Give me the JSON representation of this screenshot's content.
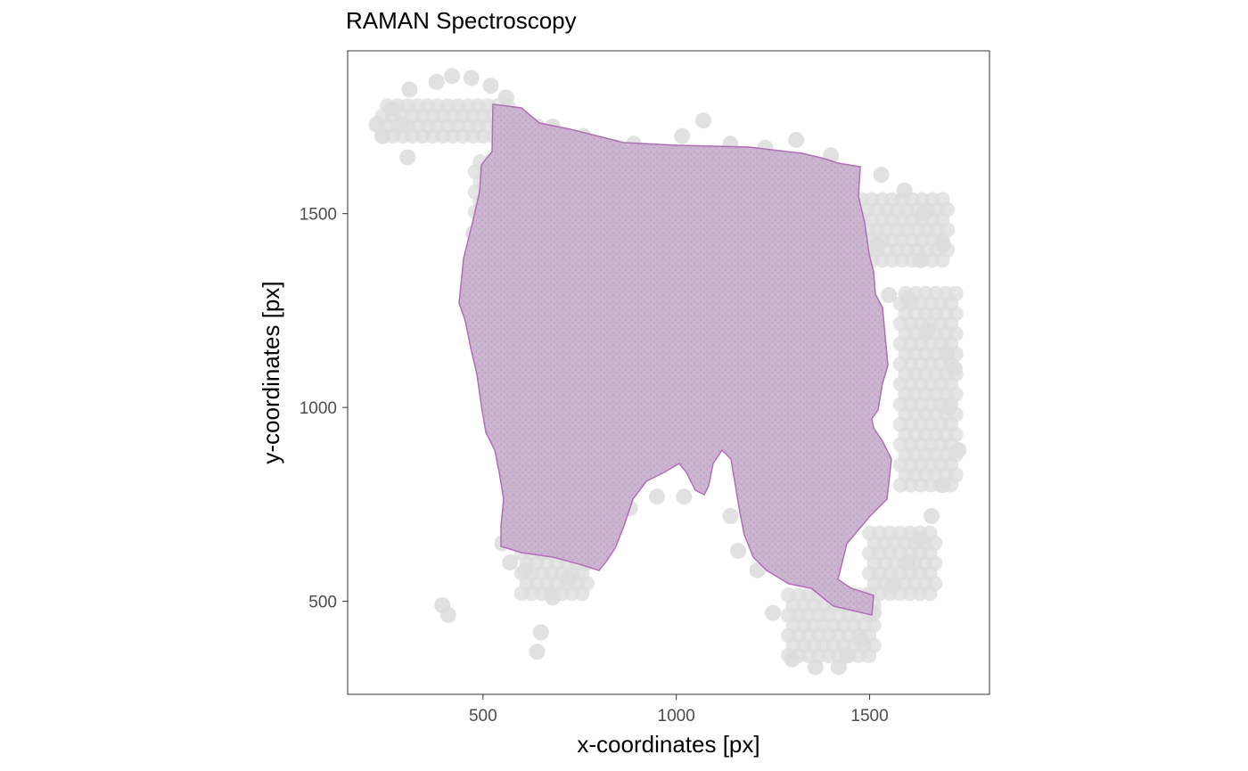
{
  "chart_data": {
    "type": "scatter",
    "title": "RAMAN Spectroscopy",
    "xlabel": "x-coordinates [px]",
    "ylabel": "y-coordinates [px]",
    "xlim": [
      150,
      1810
    ],
    "ylim": [
      260,
      1920
    ],
    "x_ticks": [
      500,
      1000,
      1500
    ],
    "y_ticks": [
      500,
      1000,
      1500
    ],
    "grid": false,
    "legend": "none",
    "colors": {
      "spot": "#dcdcdc",
      "tissue": "#cdb4cf",
      "tissue_edge": "#b06fb6",
      "tissue_speckle": "#9c93b6",
      "panel_border": "#333333"
    },
    "spot_size_px": 17,
    "series": [
      {
        "name": "",
        "points": [
          [
            225,
            1730
          ],
          [
            240,
            1700
          ],
          [
            265,
            1770
          ],
          [
            290,
            1730
          ],
          [
            305,
            1645
          ],
          [
            310,
            1820
          ],
          [
            380,
            1840
          ],
          [
            420,
            1855
          ],
          [
            470,
            1850
          ],
          [
            520,
            1830
          ],
          [
            560,
            1800
          ],
          [
            640,
            1725
          ],
          [
            680,
            1725
          ],
          [
            760,
            1700
          ],
          [
            800,
            1680
          ],
          [
            890,
            1680
          ],
          [
            1015,
            1700
          ],
          [
            1070,
            1740
          ],
          [
            1140,
            1680
          ],
          [
            1230,
            1670
          ],
          [
            1310,
            1690
          ],
          [
            1400,
            1650
          ],
          [
            1530,
            1600
          ],
          [
            1590,
            1560
          ],
          [
            1640,
            1500
          ],
          [
            1690,
            1420
          ],
          [
            1630,
            1380
          ],
          [
            1600,
            1280
          ],
          [
            1650,
            1200
          ],
          [
            1700,
            1140
          ],
          [
            1720,
            1100
          ],
          [
            1705,
            1000
          ],
          [
            1730,
            890
          ],
          [
            1690,
            800
          ],
          [
            1660,
            720
          ],
          [
            1630,
            660
          ],
          [
            1600,
            600
          ],
          [
            1560,
            540
          ],
          [
            1510,
            470
          ],
          [
            1480,
            400
          ],
          [
            1440,
            360
          ],
          [
            1420,
            330
          ],
          [
            1360,
            330
          ],
          [
            1300,
            350
          ],
          [
            1250,
            470
          ],
          [
            1210,
            580
          ],
          [
            1160,
            630
          ],
          [
            1140,
            720
          ],
          [
            1020,
            770
          ],
          [
            950,
            770
          ],
          [
            880,
            740
          ],
          [
            800,
            720
          ],
          [
            760,
            620
          ],
          [
            720,
            560
          ],
          [
            680,
            510
          ],
          [
            650,
            420
          ],
          [
            640,
            370
          ],
          [
            550,
            650
          ],
          [
            570,
            600
          ],
          [
            610,
            580
          ],
          [
            395,
            490
          ],
          [
            410,
            465
          ],
          [
            495,
            1500
          ],
          [
            475,
            1450
          ],
          [
            485,
            1400
          ],
          [
            520,
            1620
          ],
          [
            510,
            1560
          ],
          [
            540,
            1180
          ],
          [
            555,
            970
          ],
          [
            1520,
            1420
          ],
          [
            1550,
            1290
          ],
          [
            1510,
            1220
          ]
        ]
      }
    ]
  }
}
